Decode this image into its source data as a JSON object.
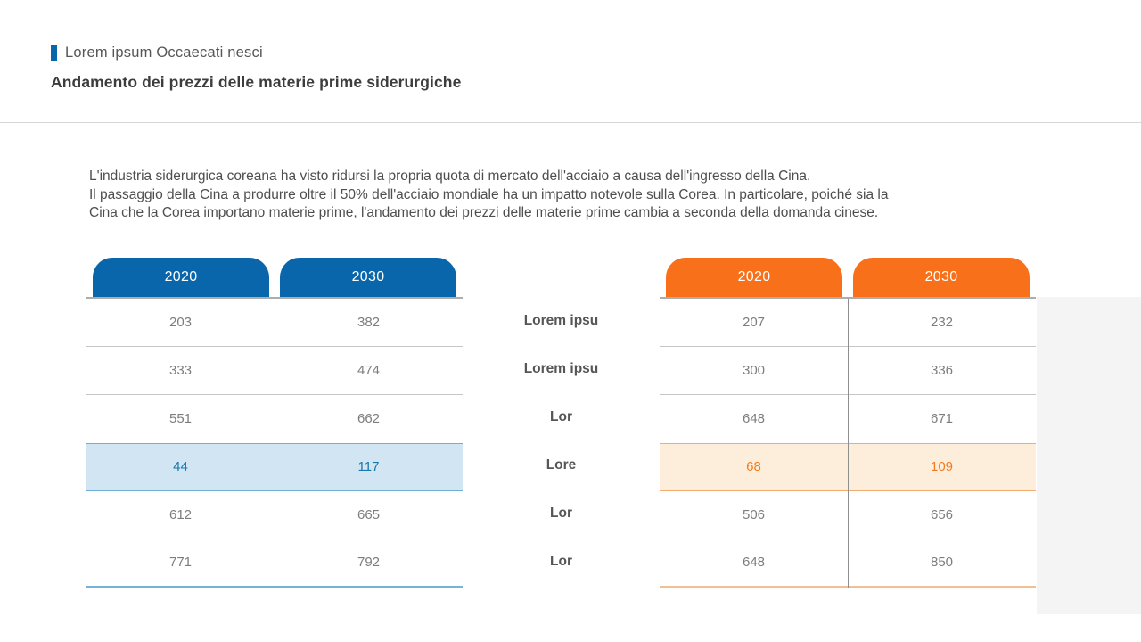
{
  "header": {
    "eyebrow": "Lorem ipsum Occaecati nesci",
    "title": "Andamento dei prezzi delle materie prime siderurgiche"
  },
  "intro": "L'industria siderurgica coreana ha visto ridursi la propria quota di mercato dell'acciaio a causa dell'ingresso della Cina.\nIl passaggio della Cina a produrre oltre il 50% dell'acciaio mondiale ha un impatto notevole sulla Corea. In particolare, poiché sia la\nCina che la Corea importano materie prime, l'andamento dei prezzi delle materie prime cambia a seconda della domanda cinese.",
  "colors": {
    "blue_accent": "#0966AB",
    "orange_accent": "#F8711A",
    "blue_highlight_bg": "#D2E5F2",
    "blue_highlight_text": "#1878AC",
    "orange_highlight_bg": "#FDEEDB",
    "orange_highlight_text": "#F47B20"
  },
  "row_labels": [
    "Lorem ipsu",
    "Lorem ipsu",
    "Lor",
    "Lore",
    "Lor",
    "Lor"
  ],
  "left_table": {
    "headers": [
      "2020",
      "2030"
    ],
    "highlight_row": 3,
    "rows": [
      [
        "203",
        "382"
      ],
      [
        "333",
        "474"
      ],
      [
        "551",
        "662"
      ],
      [
        "44",
        "117"
      ],
      [
        "612",
        "665"
      ],
      [
        "771",
        "792"
      ]
    ]
  },
  "right_table": {
    "headers": [
      "2020",
      "2030"
    ],
    "highlight_row": 3,
    "rows": [
      [
        "207",
        "232"
      ],
      [
        "300",
        "336"
      ],
      [
        "648",
        "671"
      ],
      [
        "68",
        "109"
      ],
      [
        "506",
        "656"
      ],
      [
        "648",
        "850"
      ]
    ]
  }
}
